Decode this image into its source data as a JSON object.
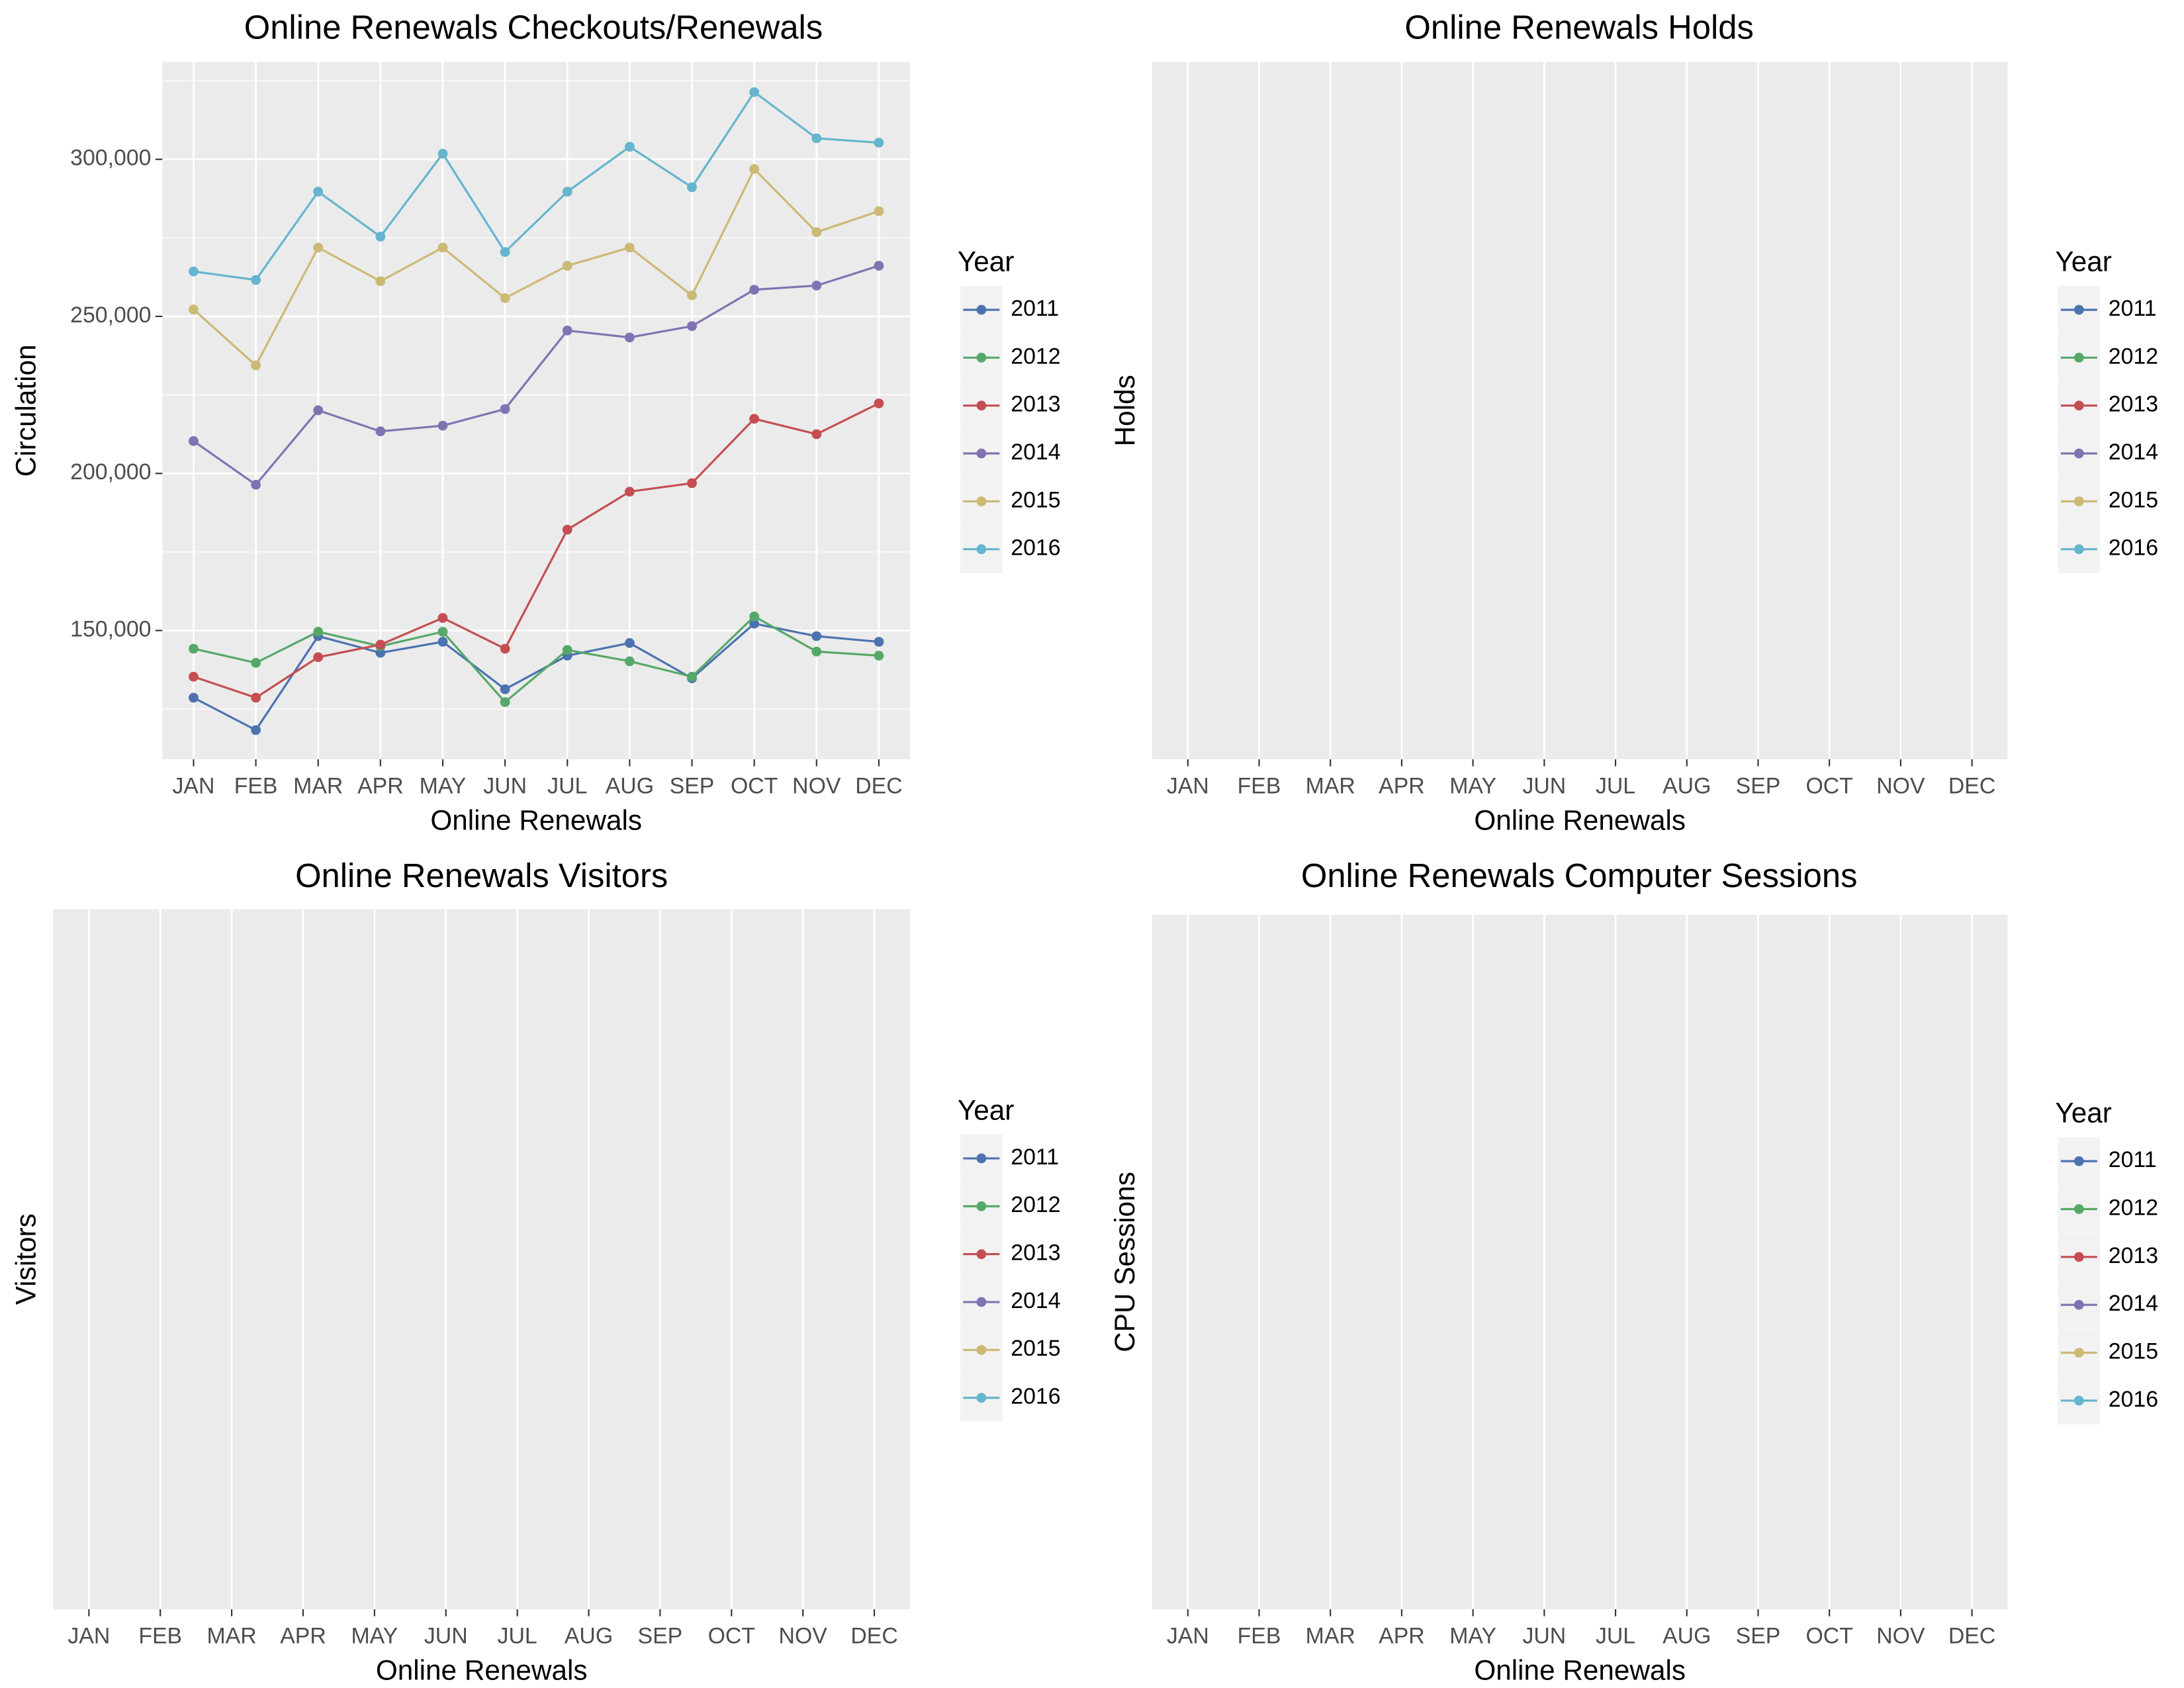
{
  "chart_data": [
    {
      "type": "line",
      "title": "Online Renewals Checkouts/Renewals",
      "x_label": "Online Renewals",
      "y_label": "Circulation",
      "legend_title": "Year",
      "categories": [
        "JAN",
        "FEB",
        "MAR",
        "APR",
        "MAY",
        "JUN",
        "JUL",
        "AUG",
        "SEP",
        "OCT",
        "NOV",
        "DEC"
      ],
      "ylim": [
        109000,
        331000
      ],
      "yticks": [
        {
          "value": 150000,
          "label": "150,000"
        },
        {
          "value": 200000,
          "label": "200,000"
        },
        {
          "value": 250000,
          "label": "250,000"
        },
        {
          "value": 300000,
          "label": "300,000"
        }
      ],
      "grid": true,
      "legend": "right",
      "series": [
        {
          "name": "2011",
          "color": "#4c72b0",
          "values": [
            128600,
            118300,
            148200,
            142900,
            146400,
            131300,
            142000,
            146000,
            134800,
            152200,
            148200,
            146400
          ]
        },
        {
          "name": "2012",
          "color": "#55a868",
          "values": [
            144200,
            139700,
            149600,
            145000,
            149600,
            127200,
            143800,
            140200,
            135300,
            154500,
            143300,
            142000
          ]
        },
        {
          "name": "2013",
          "color": "#c44e52",
          "values": [
            135300,
            128600,
            141500,
            145500,
            154000,
            144200,
            182100,
            194200,
            196900,
            217400,
            212500,
            222300
          ]
        },
        {
          "name": "2014",
          "color": "#8172b2",
          "values": [
            210300,
            196400,
            220100,
            213400,
            215200,
            220500,
            245500,
            243300,
            246900,
            258500,
            259800,
            266100
          ]
        },
        {
          "name": "2015",
          "color": "#ccb974",
          "values": [
            252200,
            234400,
            271900,
            261200,
            271900,
            255800,
            266100,
            271900,
            256700,
            296900,
            276800,
            283500
          ]
        },
        {
          "name": "2016",
          "color": "#64b5cd",
          "values": [
            264300,
            261600,
            289700,
            275400,
            301800,
            270500,
            289700,
            304000,
            291100,
            321400,
            306700,
            305300
          ]
        }
      ]
    },
    {
      "type": "line",
      "title": "Online Renewals Holds",
      "x_label": "Online Renewals",
      "y_label": "Holds",
      "legend_title": "Year",
      "categories": [
        "JAN",
        "FEB",
        "MAR",
        "APR",
        "MAY",
        "JUN",
        "JUL",
        "AUG",
        "SEP",
        "OCT",
        "NOV",
        "DEC"
      ],
      "grid": true,
      "legend": "right",
      "series": [
        {
          "name": "2011",
          "color": "#4c72b0"
        },
        {
          "name": "2012",
          "color": "#55a868"
        },
        {
          "name": "2013",
          "color": "#c44e52"
        },
        {
          "name": "2014",
          "color": "#8172b2"
        },
        {
          "name": "2015",
          "color": "#ccb974"
        },
        {
          "name": "2016",
          "color": "#64b5cd"
        }
      ]
    },
    {
      "type": "line",
      "title": "Online Renewals Visitors",
      "x_label": "Online Renewals",
      "y_label": "Visitors",
      "legend_title": "Year",
      "categories": [
        "JAN",
        "FEB",
        "MAR",
        "APR",
        "MAY",
        "JUN",
        "JUL",
        "AUG",
        "SEP",
        "OCT",
        "NOV",
        "DEC"
      ],
      "grid": true,
      "legend": "right",
      "series": [
        {
          "name": "2011",
          "color": "#4c72b0"
        },
        {
          "name": "2012",
          "color": "#55a868"
        },
        {
          "name": "2013",
          "color": "#c44e52"
        },
        {
          "name": "2014",
          "color": "#8172b2"
        },
        {
          "name": "2015",
          "color": "#ccb974"
        },
        {
          "name": "2016",
          "color": "#64b5cd"
        }
      ]
    },
    {
      "type": "line",
      "title": "Online Renewals Computer Sessions",
      "x_label": "Online Renewals",
      "y_label": "CPU Sessions",
      "legend_title": "Year",
      "categories": [
        "JAN",
        "FEB",
        "MAR",
        "APR",
        "MAY",
        "JUN",
        "JUL",
        "AUG",
        "SEP",
        "OCT",
        "NOV",
        "DEC"
      ],
      "grid": true,
      "legend": "right",
      "series": [
        {
          "name": "2011",
          "color": "#4c72b0"
        },
        {
          "name": "2012",
          "color": "#55a868"
        },
        {
          "name": "2013",
          "color": "#c44e52"
        },
        {
          "name": "2014",
          "color": "#8172b2"
        },
        {
          "name": "2015",
          "color": "#ccb974"
        },
        {
          "name": "2016",
          "color": "#64b5cd"
        }
      ]
    }
  ]
}
